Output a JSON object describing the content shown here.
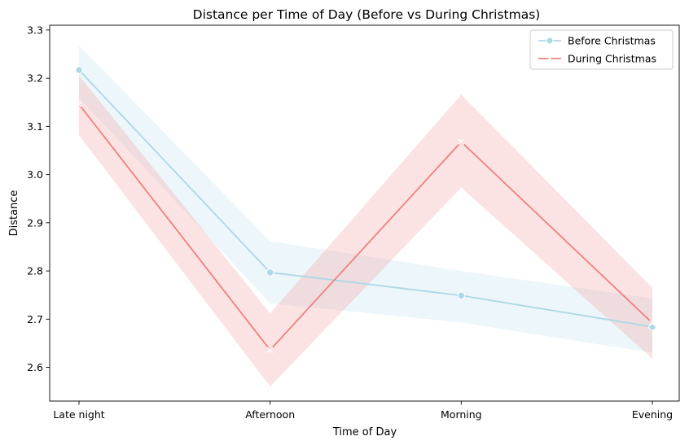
{
  "chart_data": {
    "type": "line",
    "title": "Distance per Time of Day (Before vs During Christmas)",
    "xlabel": "Time of Day",
    "ylabel": "Distance",
    "categories": [
      "Late night",
      "Afternoon",
      "Morning",
      "Evening"
    ],
    "ylim": [
      2.53,
      3.31
    ],
    "yticks": [
      "2.6",
      "2.7",
      "2.8",
      "2.9",
      "3.0",
      "3.1",
      "3.2",
      "3.3"
    ],
    "grid": false,
    "legend_position": "top-right",
    "series": [
      {
        "name": "Before Christmas",
        "color": "#ADD8E6",
        "marker": "circle",
        "values": [
          3.217,
          2.797,
          2.749,
          2.684
        ],
        "ci_lower": [
          3.16,
          2.733,
          2.693,
          2.63
        ],
        "ci_upper": [
          3.268,
          2.862,
          2.8,
          2.743
        ]
      },
      {
        "name": "During Christmas",
        "color": "#F08080",
        "marker": "x",
        "values": [
          3.146,
          2.636,
          3.068,
          2.692
        ],
        "ci_lower": [
          3.082,
          2.56,
          2.973,
          2.618
        ],
        "ci_upper": [
          3.206,
          2.712,
          3.166,
          2.765
        ]
      }
    ]
  }
}
